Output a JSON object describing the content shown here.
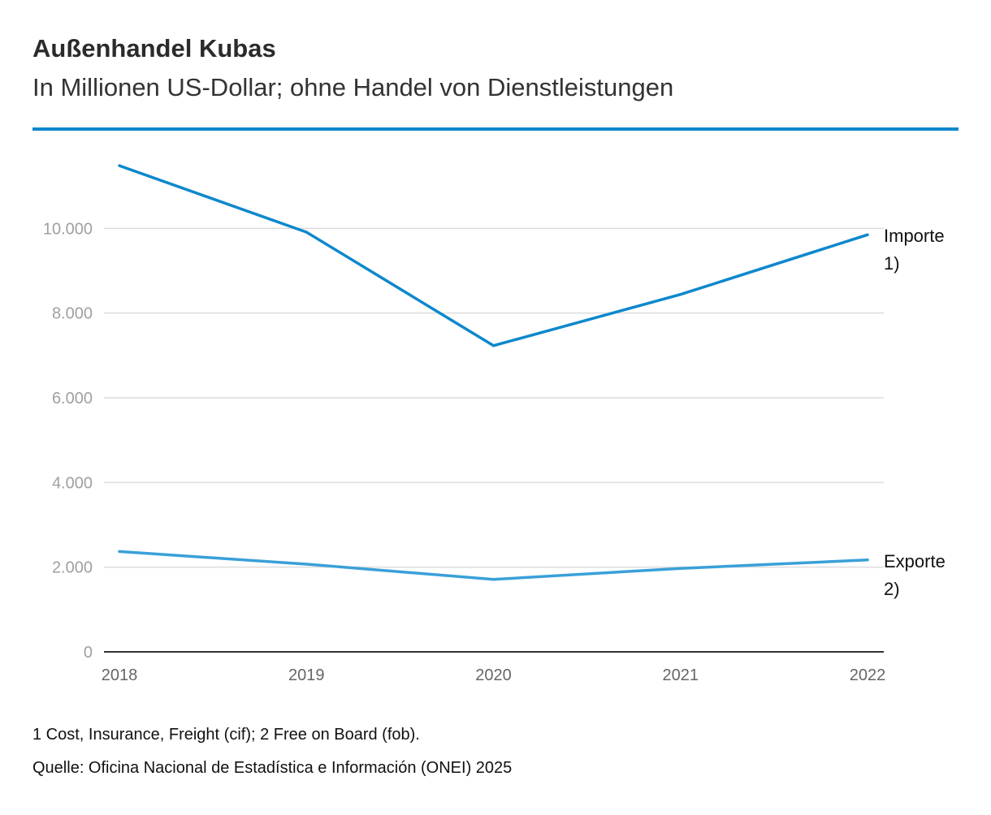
{
  "header": {
    "title": "Außenhandel Kubas",
    "subtitle": "In Millionen US-Dollar; ohne Handel von Dienstleistungen"
  },
  "chart_data": {
    "type": "line",
    "title": "Außenhandel Kubas",
    "subtitle": "In Millionen US-Dollar; ohne Handel von Dienstleistungen",
    "xlabel": "",
    "ylabel": "",
    "categories": [
      "2018",
      "2019",
      "2020",
      "2021",
      "2022"
    ],
    "ylim": [
      0,
      12000
    ],
    "yticks": [
      0,
      2000,
      4000,
      6000,
      8000,
      10000
    ],
    "ytick_labels": [
      "0",
      "2.000",
      "4.000",
      "6.000",
      "8.000",
      "10.000"
    ],
    "grid": true,
    "legend": "inline labels at line ends",
    "series": [
      {
        "name": "Importe",
        "label_lines": [
          "Importe",
          "1)"
        ],
        "values": [
          11480,
          9910,
          7230,
          8440,
          9850
        ],
        "color": "#0d88cc"
      },
      {
        "name": "Exporte",
        "label_lines": [
          "Exporte",
          "2)"
        ],
        "values": [
          2370,
          2070,
          1710,
          1970,
          2170
        ],
        "color": "#3aa0d8"
      }
    ]
  },
  "footer": {
    "note": "1 Cost, Insurance, Freight (cif); 2 Free on Board (fob).",
    "source": "Quelle: Oficina Nacional de Estadística e Información (ONEI) 2025"
  },
  "colors": {
    "accent": "#0d88cc",
    "grid": "#dddddd",
    "axis": "#333333",
    "tick_text": "#a0a0a0"
  }
}
